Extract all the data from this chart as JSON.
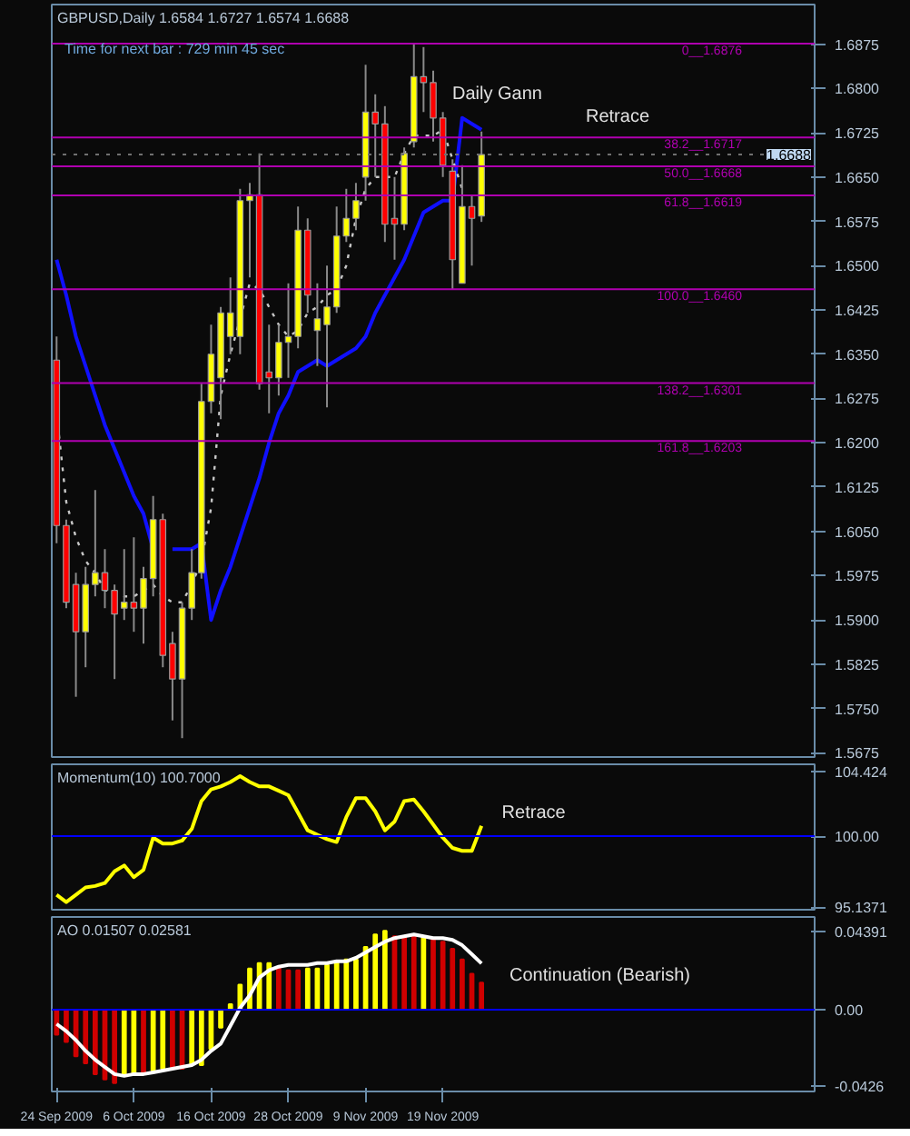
{
  "chart_data": [
    {
      "type": "candlestick",
      "title": "GBPUSD,Daily 1.6584 1.6727 1.6574 1.6688",
      "subtitle": "Time for next bar : 729 min 45 sec",
      "categories": [
        null,
        null,
        null,
        null,
        null,
        null,
        null,
        null,
        null,
        null,
        null,
        null,
        null,
        null,
        null,
        null,
        null,
        null,
        null,
        null,
        null,
        null,
        null,
        null,
        null,
        null,
        null,
        null,
        null,
        null,
        null,
        null,
        null,
        null,
        null,
        null,
        null,
        null,
        null,
        null,
        null,
        null,
        null,
        null,
        null,
        null,
        null,
        null,
        null,
        null,
        null,
        null,
        null,
        null,
        null,
        null,
        null,
        null,
        null,
        null,
        null,
        null,
        null,
        null,
        null,
        null,
        null,
        null,
        null,
        null,
        null,
        null,
        null,
        null,
        null,
        null,
        null,
        null,
        null
      ],
      "ohlc": [
        [
          1.634,
          1.638,
          1.603,
          1.606
        ],
        [
          1.606,
          1.607,
          1.592,
          1.593
        ],
        [
          1.596,
          1.598,
          1.577,
          1.588
        ],
        [
          1.588,
          1.599,
          1.582,
          1.596
        ],
        [
          1.596,
          1.612,
          1.594,
          1.598
        ],
        [
          1.598,
          1.602,
          1.592,
          1.595
        ],
        [
          1.595,
          1.596,
          1.58,
          1.591
        ],
        [
          1.592,
          1.602,
          1.59,
          1.593
        ],
        [
          1.593,
          1.604,
          1.588,
          1.592
        ],
        [
          1.592,
          1.599,
          1.586,
          1.597
        ],
        [
          1.597,
          1.611,
          1.594,
          1.607
        ],
        [
          1.607,
          1.608,
          1.582,
          1.584
        ],
        [
          1.586,
          1.588,
          1.573,
          1.58
        ],
        [
          1.58,
          1.593,
          1.57,
          1.592
        ],
        [
          1.592,
          1.602,
          1.59,
          1.598
        ],
        [
          1.598,
          1.63,
          1.597,
          1.627
        ],
        [
          1.627,
          1.64,
          1.625,
          1.635
        ],
        [
          1.631,
          1.643,
          1.624,
          1.642
        ],
        [
          1.638,
          1.648,
          1.635,
          1.642
        ],
        [
          1.638,
          1.663,
          1.635,
          1.661
        ],
        [
          1.661,
          1.664,
          1.648,
          1.662
        ],
        [
          1.662,
          1.669,
          1.629,
          1.63
        ],
        [
          1.632,
          1.64,
          1.625,
          1.631
        ],
        [
          1.631,
          1.64,
          1.628,
          1.637
        ],
        [
          1.637,
          1.647,
          1.631,
          1.638
        ],
        [
          1.638,
          1.66,
          1.636,
          1.656
        ],
        [
          1.656,
          1.658,
          1.642,
          1.645
        ],
        [
          1.639,
          1.647,
          1.633,
          1.641
        ],
        [
          1.64,
          1.65,
          1.626,
          1.643
        ],
        [
          1.643,
          1.66,
          1.642,
          1.655
        ],
        [
          1.655,
          1.663,
          1.654,
          1.658
        ],
        [
          1.658,
          1.664,
          1.656,
          1.661
        ],
        [
          1.665,
          1.684,
          1.661,
          1.676
        ],
        [
          1.676,
          1.679,
          1.665,
          1.674
        ],
        [
          1.674,
          1.677,
          1.654,
          1.657
        ],
        [
          1.658,
          1.665,
          1.651,
          1.657
        ],
        [
          1.657,
          1.67,
          1.656,
          1.669
        ],
        [
          1.671,
          1.6876,
          1.67,
          1.682
        ],
        [
          1.682,
          1.687,
          1.676,
          1.681
        ],
        [
          1.681,
          1.683,
          1.671,
          1.675
        ],
        [
          1.675,
          1.676,
          1.665,
          1.667
        ],
        [
          1.666,
          1.668,
          1.646,
          1.651
        ],
        [
          1.647,
          1.667,
          1.647,
          1.66
        ],
        [
          1.66,
          1.662,
          1.65,
          1.658
        ],
        [
          1.6584,
          1.6727,
          1.6574,
          1.6688
        ],
        null,
        null,
        null,
        null,
        null,
        null,
        null,
        null,
        null,
        null,
        null,
        null,
        null,
        null,
        null,
        null,
        null,
        null,
        null,
        null,
        null,
        null,
        null,
        null,
        null,
        null,
        null,
        null,
        null,
        null,
        null,
        null,
        null,
        null
      ],
      "colors": [
        "#ff0000",
        "#ff0000",
        "#ff0000",
        "#ffff00",
        "#ffff00",
        "#ff0000",
        "#ff0000",
        "#ffff00",
        "#ff0000",
        "#ffff00",
        "#ffff00",
        "#ff0000",
        "#ff0000",
        "#ffff00",
        "#ffff00",
        "#ffff00",
        "#ffff00",
        "#ffff00",
        "#ffff00",
        "#ffff00",
        "#ffff00",
        "#ff0000",
        "#ff0000",
        "#ffff00",
        "#ffff00",
        "#ffff00",
        "#ff0000",
        "#ffff00",
        "#ffff00",
        "#ffff00",
        "#ffff00",
        "#ffff00",
        "#ffff00",
        "#ff0000",
        "#ff0000",
        "#ff0000",
        "#ffff00",
        "#ffff00",
        "#ff0000",
        "#ff0000",
        "#ff0000",
        "#ff0000",
        "#ffff00",
        "#ff0000",
        "#ffff00",
        null,
        null,
        null,
        null,
        null,
        null,
        null,
        null,
        null,
        null,
        null,
        null,
        null,
        null,
        null,
        null,
        null,
        null,
        null,
        null,
        null,
        null,
        null,
        null,
        null,
        null,
        null,
        null,
        null,
        null,
        null,
        null,
        null,
        null
      ],
      "series": [
        {
          "type": "line",
          "color": "#1010ff",
          "values": [
            1.651,
            1.645,
            1.638,
            1.633,
            1.628,
            1.623,
            1.619,
            1.615,
            1.611,
            1.608,
            1.602,
            null,
            1.602,
            1.602,
            1.602,
            1.603,
            1.59,
            1.595,
            1.599,
            1.604,
            1.609,
            1.614,
            1.62,
            1.625,
            1.628,
            1.632,
            1.633,
            1.634,
            1.633,
            1.634,
            1.635,
            1.636,
            1.638,
            1.642,
            1.645,
            1.648,
            1.651,
            1.655,
            1.659,
            1.66,
            1.661,
            1.661,
            1.675,
            1.674,
            1.673,
            null,
            null,
            null,
            null,
            null,
            null,
            null,
            null,
            null,
            null,
            null,
            null,
            null,
            null,
            null,
            null,
            null,
            null,
            null,
            null,
            null,
            null,
            null,
            null,
            null,
            null,
            null,
            null,
            null,
            null,
            null,
            null,
            null,
            null
          ]
        },
        {
          "type": "line",
          "color": "#c8c8c8",
          "line_style": "dotted",
          "values": [
            1.625,
            1.61,
            1.604,
            1.6,
            1.598,
            1.595,
            1.595,
            1.594,
            1.594,
            1.595,
            1.596,
            1.594,
            1.593,
            1.593,
            1.596,
            1.6,
            1.609,
            1.628,
            1.635,
            1.641,
            1.647,
            1.646,
            1.643,
            1.64,
            1.638,
            1.639,
            1.642,
            1.643,
            1.645,
            1.646,
            1.65,
            1.658,
            1.663,
            1.665,
            1.665,
            1.665,
            1.669,
            1.672,
            1.672,
            1.672,
            1.673,
            1.668,
            1.663,
            null,
            null,
            null,
            null,
            null,
            null,
            null,
            null,
            null,
            null,
            null,
            null,
            null,
            null,
            null,
            null,
            null,
            null,
            null,
            null,
            null,
            null,
            null,
            null,
            null,
            null,
            null,
            null,
            null,
            null,
            null,
            null,
            null,
            null,
            null,
            null
          ]
        }
      ],
      "ref_lines": [
        {
          "axis": "y",
          "value": 1.6876,
          "label": "0__1.6876",
          "color": "#b000b0"
        },
        {
          "axis": "y",
          "value": 1.6717,
          "label": "38.2__1.6717",
          "color": "#b000b0"
        },
        {
          "axis": "y",
          "value": 1.6668,
          "label": "50.0__1.6668",
          "color": "#b000b0"
        },
        {
          "axis": "y",
          "value": 1.6619,
          "label": "61.8__1.6619",
          "color": "#b000b0"
        },
        {
          "axis": "y",
          "value": 1.646,
          "label": "100.0__1.6460",
          "color": "#b000b0"
        },
        {
          "axis": "y",
          "value": 1.6301,
          "label": "138.2__1.6301",
          "color": "#b000b0"
        },
        {
          "axis": "y",
          "value": 1.6203,
          "label": "161.8__1.6203",
          "color": "#b000b0"
        },
        {
          "axis": "y",
          "value": 1.6688,
          "label": "1.6688",
          "color": "#707070",
          "line_style": "dotted"
        }
      ],
      "annotations": [
        "Daily Gann",
        "Retrace"
      ],
      "ylim": [
        1.5668,
        1.6942
      ],
      "yticks": [
        1.6875,
        {
          "value": 1.68,
          "label": "1.6800"
        },
        1.6725,
        {
          "value": 1.665,
          "label": "1.6650"
        },
        1.6575,
        {
          "value": 1.65,
          "label": "1.6500"
        },
        1.6425,
        {
          "value": 1.635,
          "label": "1.6350"
        },
        1.6275,
        {
          "value": 1.62,
          "label": "1.6200"
        },
        1.6125,
        {
          "value": 1.605,
          "label": "1.6050"
        },
        1.5975,
        {
          "value": 1.59,
          "label": "1.5900"
        },
        1.5825,
        {
          "value": 1.575,
          "label": "1.5750"
        },
        1.5675
      ],
      "tick_labels": "y",
      "grid": false
    },
    {
      "type": "line",
      "title": "Momentum(10) 100.7000",
      "categories": [
        null,
        null,
        null,
        null,
        null,
        null,
        null,
        null,
        null,
        null,
        null,
        null,
        null,
        null,
        null,
        null,
        null,
        null,
        null,
        null,
        null,
        null,
        null,
        null,
        null,
        null,
        null,
        null,
        null,
        null,
        null,
        null,
        null,
        null,
        null,
        null,
        null,
        null,
        null,
        null,
        null,
        null,
        null,
        null,
        null,
        null,
        null,
        null,
        null,
        null,
        null,
        null,
        null,
        null,
        null,
        null,
        null,
        null,
        null,
        null,
        null,
        null,
        null,
        null,
        null,
        null,
        null,
        null,
        null,
        null,
        null,
        null,
        null,
        null,
        null,
        null,
        null,
        null,
        null
      ],
      "series": [
        {
          "color": "#ffff00",
          "values": [
            96.0,
            95.5,
            96.0,
            96.5,
            96.6,
            96.8,
            97.6,
            98.0,
            97.2,
            97.7,
            99.9,
            99.5,
            99.5,
            99.7,
            100.5,
            102.4,
            103.2,
            103.4,
            103.7,
            104.1,
            103.7,
            103.4,
            103.4,
            103.1,
            102.8,
            101.6,
            100.4,
            100.1,
            99.8,
            99.6,
            101.3,
            102.6,
            102.6,
            101.7,
            100.4,
            101.0,
            102.4,
            102.5,
            101.7,
            100.8,
            99.9,
            99.2,
            99.0,
            99.0,
            100.7,
            null,
            null,
            null,
            null,
            null,
            null,
            null,
            null,
            null,
            null,
            null,
            null,
            null,
            null,
            null,
            null,
            null,
            null,
            null,
            null,
            null,
            null,
            null,
            null,
            null,
            null,
            null,
            null,
            null,
            null,
            null,
            null,
            null,
            null
          ]
        }
      ],
      "ref_lines": [
        {
          "axis": "y",
          "value": 100,
          "color": "#0000ff"
        }
      ],
      "annotations": [
        "Retrace"
      ],
      "ylim": [
        94.98,
        104.91
      ],
      "yticks": [
        104.424,
        {
          "value": 100,
          "label": "100.00"
        },
        95.1371
      ],
      "tick_labels": "y",
      "grid": false
    },
    {
      "type": "bar",
      "title": "AO 0.01507 0.02581",
      "categories": [
        "24 Sep 2009",
        null,
        null,
        null,
        null,
        null,
        null,
        null,
        "6 Oct 2009",
        null,
        null,
        null,
        null,
        null,
        null,
        null,
        "16 Oct 2009",
        null,
        null,
        null,
        null,
        null,
        null,
        null,
        "28 Oct 2009",
        null,
        null,
        null,
        null,
        null,
        null,
        null,
        "9 Nov 2009",
        null,
        null,
        null,
        null,
        null,
        null,
        null,
        "19 Nov 2009",
        null,
        null,
        null,
        null,
        null,
        null,
        null,
        null,
        null,
        null,
        null,
        null,
        null,
        null,
        null,
        null,
        null,
        null,
        null,
        null,
        null,
        null,
        null,
        null,
        null,
        null,
        null,
        null,
        null,
        null,
        null,
        null,
        null,
        null,
        null,
        null,
        null,
        null
      ],
      "series": [
        {
          "type": "bar",
          "values": [
            -0.014,
            -0.018,
            -0.026,
            -0.03,
            -0.036,
            -0.039,
            -0.041,
            -0.036,
            -0.036,
            -0.036,
            -0.034,
            -0.033,
            -0.033,
            -0.033,
            -0.031,
            -0.031,
            -0.022,
            -0.01,
            0.003,
            0.014,
            0.023,
            0.026,
            0.026,
            0.023,
            0.022,
            0.022,
            0.023,
            0.023,
            0.025,
            0.027,
            0.028,
            0.028,
            0.035,
            0.042,
            0.044,
            0.041,
            0.041,
            0.041,
            0.041,
            0.039,
            0.038,
            0.034,
            0.028,
            0.02,
            0.01507,
            null,
            null,
            null,
            null,
            null,
            null,
            null,
            null,
            null,
            null,
            null,
            null,
            null,
            null,
            null,
            null,
            null,
            null,
            null,
            null,
            null,
            null,
            null,
            null,
            null,
            null,
            null,
            null,
            null,
            null,
            null,
            null,
            null,
            null
          ],
          "colors": [
            "#d00000",
            "#d00000",
            "#d00000",
            "#d00000",
            "#d00000",
            "#d00000",
            "#d00000",
            "#ffff00",
            "#ffff00",
            "#d00000",
            "#ffff00",
            "#ffff00",
            "#d00000",
            "#d00000",
            "#ffff00",
            "#ffff00",
            "#ffff00",
            "#ffff00",
            "#ffff00",
            "#ffff00",
            "#ffff00",
            "#ffff00",
            "#ffff00",
            "#d00000",
            "#d00000",
            "#d00000",
            "#ffff00",
            "#ffff00",
            "#ffff00",
            "#ffff00",
            "#ffff00",
            "#ffff00",
            "#ffff00",
            "#ffff00",
            "#ffff00",
            "#d00000",
            "#d00000",
            "#d00000",
            "#ffff00",
            "#d00000",
            "#d00000",
            "#d00000",
            "#d00000",
            "#d00000",
            "#d00000",
            null,
            null,
            null,
            null,
            null,
            null,
            null,
            null,
            null,
            null,
            null,
            null,
            null,
            null,
            null,
            null,
            null,
            null,
            null,
            null,
            null,
            null,
            null,
            null,
            null,
            null,
            null,
            null,
            null,
            null,
            null,
            null,
            null,
            null
          ]
        },
        {
          "type": "line",
          "color": "#ffffff",
          "values": [
            -0.008,
            -0.012,
            -0.017,
            -0.023,
            -0.028,
            -0.032,
            -0.036,
            -0.037,
            -0.036,
            -0.036,
            -0.035,
            -0.034,
            -0.033,
            -0.032,
            -0.031,
            -0.028,
            -0.023,
            -0.019,
            -0.009,
            0.001,
            0.008,
            0.018,
            0.022,
            0.024,
            0.025,
            0.025,
            0.025,
            0.026,
            0.026,
            0.027,
            0.027,
            0.029,
            0.032,
            0.035,
            0.038,
            0.04,
            0.041,
            0.042,
            0.041,
            0.04,
            0.04,
            0.039,
            0.036,
            0.031,
            0.02581,
            null,
            null,
            null,
            null,
            null,
            null,
            null,
            null,
            null,
            null,
            null,
            null,
            null,
            null,
            null,
            null,
            null,
            null,
            null,
            null,
            null,
            null,
            null,
            null,
            null,
            null,
            null,
            null,
            null,
            null,
            null,
            null,
            null,
            null
          ]
        }
      ],
      "ref_lines": [
        {
          "axis": "y",
          "value": 0,
          "color": "#0000ff"
        }
      ],
      "annotations": [
        "Continuation (Bearish)"
      ],
      "ylim": [
        -0.0457,
        0.0518
      ],
      "yticks": [
        0.04391,
        {
          "value": 0,
          "label": "0.00"
        },
        -0.0426
      ],
      "grid": false
    }
  ]
}
